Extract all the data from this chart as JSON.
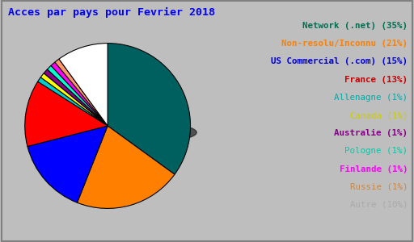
{
  "title": "Acces par pays pour Fevrier 2018",
  "title_color": "#0000ff",
  "title_fontsize": 9.5,
  "background_color": "#bebebe",
  "labels": [
    "Network (.net)",
    "Non-resolu/Inconnu",
    "US Commercial (.com)",
    "France",
    "Allenagne",
    "Canada",
    "Australie",
    "Pologne",
    "Finlande",
    "Russie",
    "Autre"
  ],
  "display_labels": [
    "Network (.net) (35%)",
    "Non-resolu/Inconnu (21%)",
    "US Commercial (.com) (15%)",
    "France (13%)",
    "Allenagne (1%)",
    "Canada (1%)",
    "Australie (1%)",
    "Pologne (1%)",
    "Finlande (1%)",
    "Russie (1%)",
    "Autre (10%)"
  ],
  "percentages": [
    35,
    21,
    15,
    13,
    1,
    1,
    1,
    1,
    1,
    1,
    10
  ],
  "pie_colors": [
    "#006060",
    "#ff8000",
    "#0000ff",
    "#ff0000",
    "#00cccc",
    "#ffff00",
    "#880088",
    "#00ffcc",
    "#ff00ff",
    "#ff9966",
    "#ffffff"
  ],
  "legend_colors": [
    "#007050",
    "#ff8000",
    "#0000dd",
    "#cc0000",
    "#00aaaa",
    "#cccc00",
    "#880088",
    "#00ccaa",
    "#ff00ff",
    "#cc8844",
    "#aaaaaa"
  ],
  "font_family": "monospace",
  "font_size": 7.8,
  "legend_font_bold": [
    true,
    true,
    true,
    true,
    false,
    false,
    true,
    false,
    true,
    false,
    false
  ]
}
